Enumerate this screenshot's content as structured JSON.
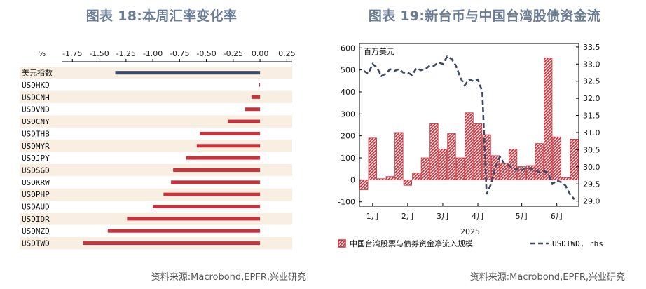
{
  "left_title": "图表 18:本周汇率变化率",
  "right_title": "图表 19:新台币与中国台湾股债资金流",
  "left_source": "资料来源:Macrobond,EPFR,兴业研究",
  "right_source": "资料来源:Macrobond,EPFR,兴业研究",
  "colors": {
    "bar_red": "#c8323c",
    "bar_navy": "#3c4a66",
    "band": "#f8eee2",
    "title": "#6a7d95",
    "dash": "#3c4a66"
  },
  "chart_data": [
    {
      "type": "bar",
      "orientation": "horizontal",
      "unit_label": "%",
      "categories": [
        "美元指数",
        "USDHKD",
        "USDCNH",
        "USDVND",
        "USDCNY",
        "USDTHB",
        "USDMYR",
        "USDJPY",
        "USDSGD",
        "USDKRW",
        "USDPHP",
        "USDAUD",
        "USDIDR",
        "USDNZD",
        "USDTWD"
      ],
      "values": [
        -1.35,
        -0.01,
        -0.08,
        -0.14,
        -0.3,
        -0.56,
        -0.59,
        -0.69,
        -0.81,
        -0.83,
        -0.9,
        -1.0,
        -1.24,
        -1.42,
        -1.65
      ],
      "highlight": [
        "美元指数"
      ],
      "xlim": [
        -1.85,
        0.3
      ],
      "xticks": [
        -1.75,
        -1.5,
        -1.25,
        -1.0,
        -0.75,
        -0.5,
        -0.25,
        0.0,
        0.25
      ],
      "xtick_labels": [
        "-1.75",
        "-1.50",
        "-1.25",
        "-1.00",
        "-0.75",
        "-0.50",
        "-0.25",
        "0.00",
        "0.25"
      ]
    },
    {
      "type": "bar+line",
      "ylabel_left": "百万美元",
      "xlabel": "2025",
      "month_labels": [
        "1月",
        "2月",
        "3月",
        "4月",
        "5月",
        "6月"
      ],
      "month_positions": [
        1,
        5,
        9,
        13,
        18,
        22
      ],
      "ylim_left": [
        -120,
        620
      ],
      "yticks_left": [
        -100,
        0,
        100,
        200,
        300,
        400,
        500,
        600
      ],
      "ylim_right": [
        28.85,
        33.6
      ],
      "yticks_right": [
        29.0,
        29.5,
        30.0,
        30.5,
        31.0,
        31.5,
        32.0,
        32.5,
        33.0,
        33.5
      ],
      "yticks_right_labels": [
        "29.0",
        "29.5",
        "30.0",
        "30.5",
        "31.0",
        "31.5",
        "32.0",
        "32.5",
        "33.0",
        "33.5"
      ],
      "x_range": [
        -0.5,
        24.5
      ],
      "series": [
        {
          "name": "中国台湾股票与债券资金净流入规模",
          "kind": "bar",
          "axis": "left",
          "values": [
            -45,
            190,
            5,
            15,
            215,
            -25,
            30,
            100,
            255,
            140,
            210,
            100,
            305,
            255,
            205,
            110,
            75,
            140,
            60,
            65,
            165,
            555,
            195,
            10,
            185
          ]
        },
        {
          "name": "USDTWD, rhs",
          "kind": "line",
          "axis": "right",
          "x": [
            0,
            0.5,
            1,
            1.5,
            2,
            2.5,
            3,
            3.5,
            4,
            4.5,
            5,
            5.5,
            6,
            6.5,
            7,
            7.5,
            8,
            8.5,
            9,
            9.5,
            10,
            10.5,
            11,
            11.5,
            12,
            12.5,
            13,
            13.5,
            14,
            14.5,
            15,
            15.5,
            16,
            16.5,
            17,
            17.5,
            18,
            18.5,
            19,
            19.5,
            20,
            20.5,
            21,
            21.5,
            22,
            22.5,
            23,
            23.5,
            24
          ],
          "values": [
            32.8,
            32.72,
            33.0,
            32.9,
            32.65,
            32.72,
            32.85,
            32.8,
            32.85,
            32.75,
            32.75,
            32.68,
            32.88,
            32.82,
            32.85,
            32.95,
            32.95,
            33.05,
            33.0,
            33.22,
            33.15,
            32.95,
            32.6,
            32.38,
            32.55,
            32.5,
            32.55,
            32.2,
            29.2,
            29.5,
            30.0,
            30.3,
            30.1,
            30.05,
            29.95,
            29.92,
            29.9,
            29.98,
            29.95,
            29.9,
            29.85,
            29.88,
            29.82,
            29.5,
            29.6,
            29.55,
            29.45,
            29.2,
            29.05
          ]
        }
      ]
    }
  ]
}
